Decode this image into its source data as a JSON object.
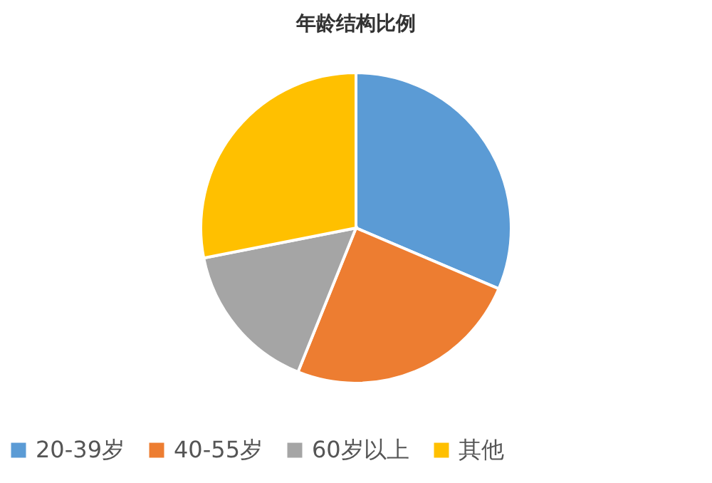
{
  "chart_data": {
    "type": "pie",
    "title": "年龄结构比例",
    "categories": [
      "20-39岁",
      "40-55岁",
      "60岁以上",
      "其他"
    ],
    "values": [
      31.4,
      24.7,
      15.8,
      28.1
    ],
    "colors": [
      "#5b9bd5",
      "#ed7d31",
      "#a5a5a5",
      "#ffc000"
    ],
    "legend": "bottom"
  }
}
